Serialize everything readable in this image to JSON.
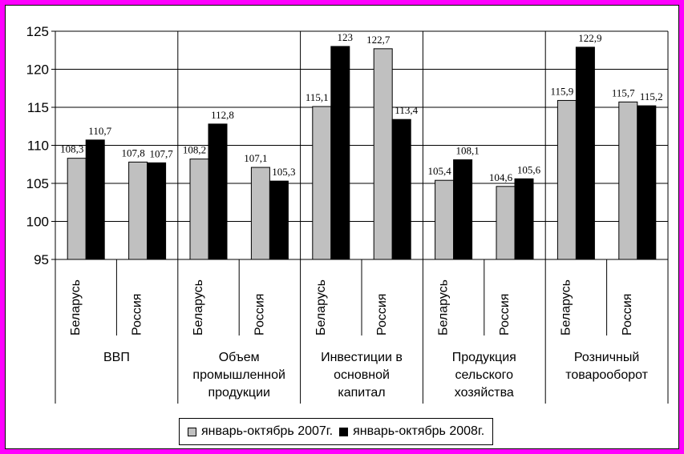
{
  "colors": {
    "border": "#ff00ff",
    "series_2007": "#c0c0c0",
    "series_2008": "#000000"
  },
  "chart_data": {
    "type": "bar",
    "title": "",
    "xlabel": "",
    "ylabel": "",
    "ylim": [
      95,
      125
    ],
    "yticks": [
      "95",
      "100",
      "105",
      "110",
      "115",
      "120",
      "125"
    ],
    "grid": true,
    "legend_position": "bottom",
    "groups": [
      "ВВП",
      "Объем промышленной продукции",
      "Инвестиции в основной капитал",
      "Продукция сельского хозяйства",
      "Розничный товарооборот"
    ],
    "group_label_lines": [
      [
        "ВВП"
      ],
      [
        "Объем",
        "промышленной",
        "продукции"
      ],
      [
        "Инвестиции в",
        "основной",
        "капитал"
      ],
      [
        "Продукция",
        "сельского",
        "хозяйства"
      ],
      [
        "Розничный",
        "товарооборот"
      ]
    ],
    "categories": [
      "Беларусь",
      "Россия",
      "Беларусь",
      "Россия",
      "Беларусь",
      "Россия",
      "Беларусь",
      "Россия",
      "Беларусь",
      "Россия"
    ],
    "series": [
      {
        "name": "январь-октябрь 2007г.",
        "values": [
          108.3,
          107.8,
          108.2,
          107.1,
          115.1,
          122.7,
          105.4,
          104.6,
          115.9,
          115.7
        ],
        "labels": [
          "108,3",
          "107,8",
          "108,2",
          "107,1",
          "115,1",
          "122,7",
          "105,4",
          "104,6",
          "115,9",
          "115,7"
        ]
      },
      {
        "name": "январь-октябрь 2008г.",
        "values": [
          110.7,
          107.7,
          112.8,
          105.3,
          123,
          113.4,
          108.1,
          105.6,
          122.9,
          115.2
        ],
        "labels": [
          "110,7",
          "107,7",
          "112,8",
          "105,3",
          "123",
          "113,4",
          "108,1",
          "105,6",
          "122,9",
          "115,2"
        ]
      }
    ]
  }
}
